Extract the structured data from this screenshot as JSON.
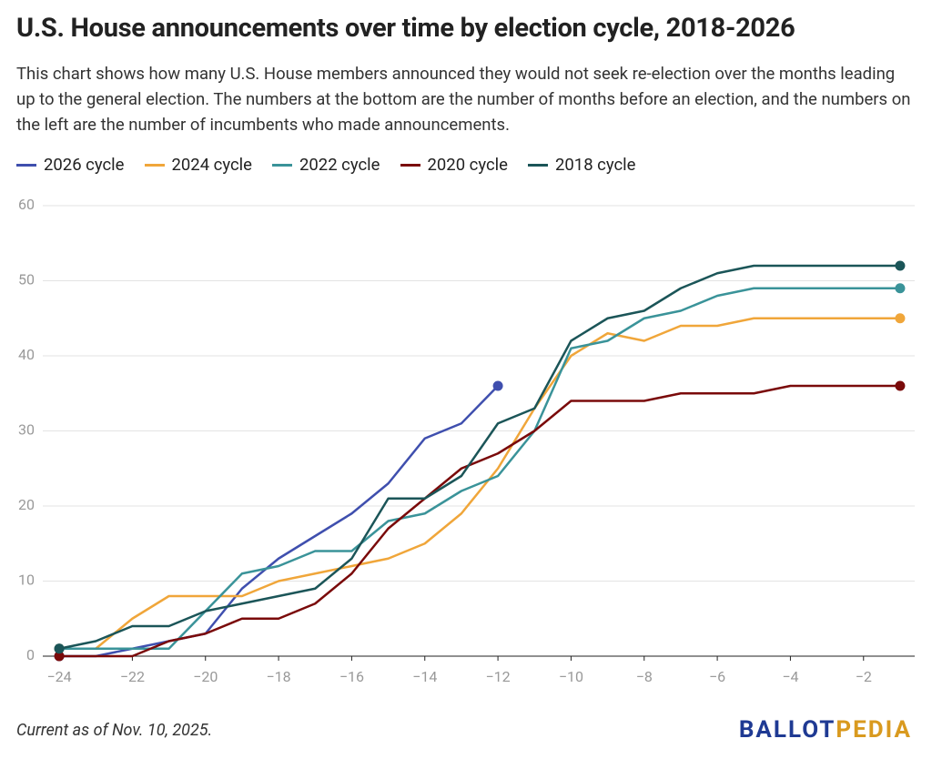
{
  "chart_data": {
    "type": "line",
    "title": "U.S. House announcements over time by election cycle, 2018-2026",
    "subtitle": "This chart shows how many U.S. House members announced they would not seek re-election over the months leading up to the general election. The numbers at the bottom are the number of months before an election, and the numbers on the left are the number of incumbents who made announcements.",
    "x": [
      -24,
      -23,
      -22,
      -21,
      -20,
      -19,
      -18,
      -17,
      -16,
      -15,
      -14,
      -13,
      -12,
      -11,
      -10,
      -9,
      -8,
      -7,
      -6,
      -5,
      -4,
      -3,
      -2,
      -1
    ],
    "series": [
      {
        "name": "2026 cycle",
        "color": "#3f4fae",
        "values": [
          0,
          0,
          1,
          2,
          3,
          9,
          13,
          16,
          19,
          23,
          29,
          31,
          36,
          null,
          null,
          null,
          null,
          null,
          null,
          null,
          null,
          null,
          null,
          null
        ]
      },
      {
        "name": "2024 cycle",
        "color": "#f0a63a",
        "values": [
          1,
          1,
          5,
          8,
          8,
          8,
          10,
          11,
          12,
          13,
          15,
          19,
          25,
          33,
          40,
          43,
          42,
          44,
          44,
          45,
          45,
          45,
          45,
          45
        ]
      },
      {
        "name": "2022 cycle",
        "color": "#3a9399",
        "values": [
          1,
          1,
          1,
          1,
          6,
          11,
          12,
          14,
          14,
          18,
          19,
          22,
          24,
          30,
          41,
          42,
          45,
          46,
          48,
          49,
          49,
          49,
          49,
          49
        ]
      },
      {
        "name": "2020 cycle",
        "color": "#7a0a0a",
        "values": [
          0,
          0,
          0,
          2,
          3,
          5,
          5,
          7,
          11,
          17,
          21,
          25,
          27,
          30,
          34,
          34,
          34,
          35,
          35,
          35,
          36,
          36,
          36,
          36
        ]
      },
      {
        "name": "2018 cycle",
        "color": "#1b5558",
        "values": [
          1,
          2,
          4,
          4,
          6,
          7,
          8,
          9,
          13,
          21,
          21,
          24,
          31,
          33,
          42,
          45,
          46,
          49,
          51,
          52,
          52,
          52,
          52,
          52
        ]
      }
    ],
    "xlim": [
      -24.45,
      -0.6
    ],
    "ylim": [
      0,
      60
    ],
    "xticks": [
      {
        "value": -24,
        "label": "−24"
      },
      {
        "value": -22,
        "label": "−22"
      },
      {
        "value": -20,
        "label": "−20"
      },
      {
        "value": -18,
        "label": "−18"
      },
      {
        "value": -16,
        "label": "−16"
      },
      {
        "value": -14,
        "label": "−14"
      },
      {
        "value": -12,
        "label": "−12"
      },
      {
        "value": -10,
        "label": "−10"
      },
      {
        "value": -8,
        "label": "−8"
      },
      {
        "value": -6,
        "label": "−6"
      },
      {
        "value": -4,
        "label": "−4"
      },
      {
        "value": -2,
        "label": "−2"
      }
    ],
    "yticks": [
      0,
      10,
      20,
      30,
      40,
      50,
      60
    ],
    "grid": true,
    "note": "Current as of Nov. 10, 2025.",
    "logo": [
      {
        "text": "BALLOT",
        "color": "#1f3a93"
      },
      {
        "text": "PEDIA",
        "color": "#d99a1f"
      }
    ]
  }
}
